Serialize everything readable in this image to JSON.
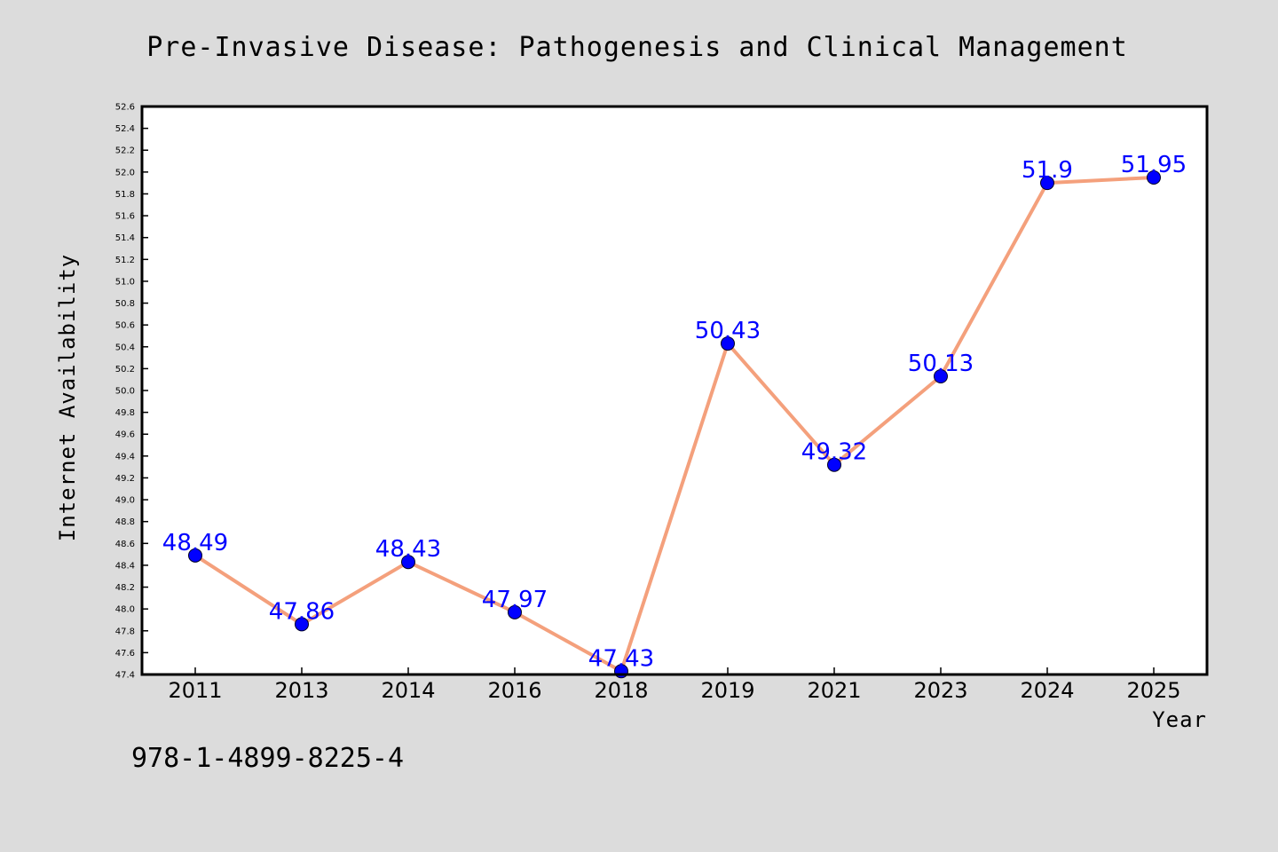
{
  "chart_data": {
    "type": "line",
    "title": "Pre-Invasive Disease: Pathogenesis and Clinical Management",
    "xlabel": "Year",
    "ylabel": "Internet Availability",
    "categories": [
      "2011",
      "2013",
      "2014",
      "2016",
      "2018",
      "2019",
      "2021",
      "2023",
      "2024",
      "2025"
    ],
    "values": [
      48.49,
      47.86,
      48.43,
      47.97,
      47.43,
      50.43,
      49.32,
      50.13,
      51.9,
      51.95
    ],
    "data_labels": [
      "48.49",
      "47.86",
      "48.43",
      "47.97",
      "47.43",
      "50.43",
      "49.32",
      "50.13",
      "51.9",
      "51.95"
    ],
    "ylim": [
      47.4,
      52.6
    ],
    "yticks": [
      "47.4",
      "47.6",
      "47.8",
      "48.0",
      "48.2",
      "48.4",
      "48.6",
      "48.8",
      "49.0",
      "49.2",
      "49.4",
      "49.6",
      "49.8",
      "50.0",
      "50.2",
      "50.4",
      "50.6",
      "50.8",
      "51.0",
      "51.2",
      "51.4",
      "51.6",
      "51.8",
      "52.0",
      "52.2",
      "52.4",
      "52.6"
    ],
    "grid": false,
    "line_color": "#f4a07c",
    "marker_color": "#0000ff",
    "label_color": "#0000ff"
  },
  "annotation": {
    "isbn": "978-1-4899-8225-4"
  }
}
